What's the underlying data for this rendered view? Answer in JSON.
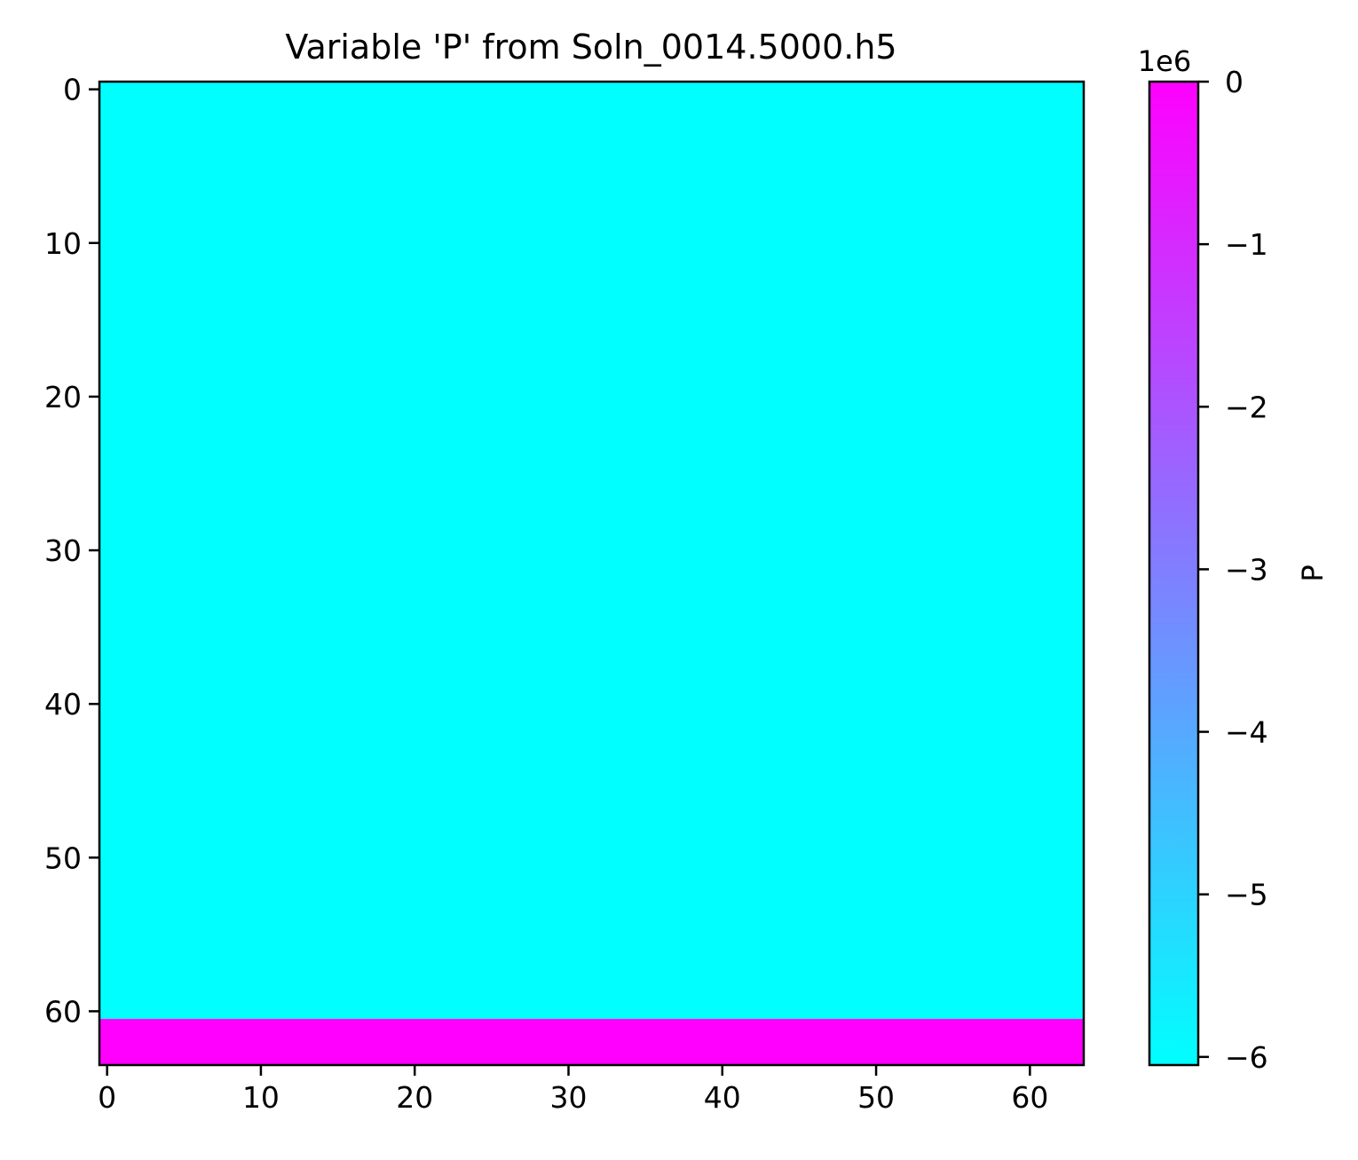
{
  "chart_data": {
    "type": "heatmap",
    "title": "Variable 'P' from Soln_0014.5000.h5",
    "xlabel": "",
    "ylabel": "",
    "grid": false,
    "xlim": [
      -0.5,
      63.5
    ],
    "ylim": [
      63.5,
      -0.5
    ],
    "x_ticks": [
      0,
      10,
      20,
      30,
      40,
      50,
      60
    ],
    "x_tick_labels": [
      "0",
      "10",
      "20",
      "30",
      "40",
      "50",
      "60"
    ],
    "y_ticks": [
      0,
      10,
      20,
      30,
      40,
      50,
      60
    ],
    "y_tick_labels": [
      "0",
      "10",
      "20",
      "30",
      "40",
      "50",
      "60"
    ],
    "regions": [
      {
        "rows": [
          0,
          60
        ],
        "cols": [
          0,
          63
        ],
        "value": -6050000,
        "color": "#00ffff"
      },
      {
        "rows": [
          61,
          63
        ],
        "cols": [
          0,
          63
        ],
        "value": 0,
        "color": "#ff00ff"
      }
    ],
    "colorbar": {
      "label": "P",
      "offset_text": "1e6",
      "colormap": "cool",
      "range": [
        -6.05,
        0
      ],
      "ticks": [
        0,
        -1,
        -2,
        -3,
        -4,
        -5,
        -6
      ],
      "tick_labels": [
        "0",
        "−1",
        "−2",
        "−3",
        "−4",
        "−5",
        "−6"
      ],
      "color_low": "#00ffff",
      "color_high": "#ff00ff"
    }
  }
}
